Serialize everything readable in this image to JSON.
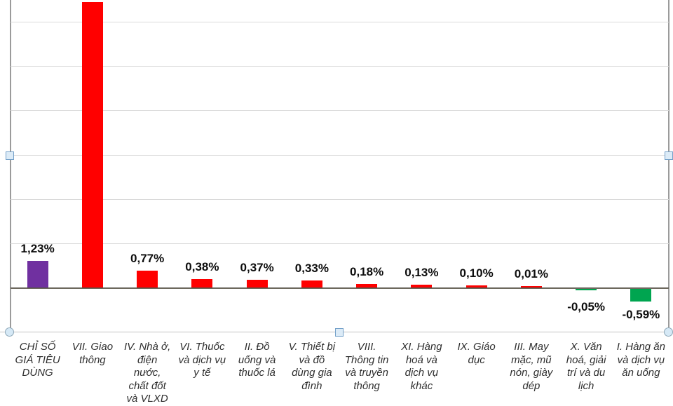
{
  "chart_data": {
    "type": "bar",
    "title": "",
    "legend": "none",
    "grid": "horizontal",
    "value_format": "percent, comma decimal separator",
    "gridlines_pct": [
      2,
      4,
      6,
      8,
      10,
      12
    ],
    "ylim_visible": [
      -2,
      13
    ],
    "note": "Tall bar VII extends to the cropped top edge of the image; its data label is not visible. Its value (12.88) is estimated from bar height.",
    "categories": [
      "CHỈ SỐ GIÁ TIÊU DÙNG",
      "VII. Giao thông",
      "IV. Nhà ở, điện nước, chất đốt và VLXD",
      "VI. Thuốc và dịch vụ y tế",
      "II. Đồ uống và thuốc lá",
      "V. Thiết bị và đồ dùng gia đình",
      "VIII. Thông tin và truyền thông",
      "XI. Hàng hoá và dịch vụ khác",
      "IX. Giáo dục",
      "III. May mặc, mũ nón, giày dép",
      "X. Văn hoá, giải trí và du lịch",
      "I. Hàng ăn và dịch vụ ăn uống"
    ],
    "category_label_lines": [
      [
        "CHỈ SỐ",
        "GIÁ TIÊU",
        "DÙNG"
      ],
      [
        "VII. Giao",
        "thông"
      ],
      [
        "IV. Nhà ở,",
        "điện",
        "nước,",
        "chất đốt",
        "và VLXD"
      ],
      [
        "VI. Thuốc",
        "và dịch vụ",
        "y tế"
      ],
      [
        "II. Đồ",
        "uống và",
        "thuốc lá"
      ],
      [
        "V. Thiết bị",
        "và đồ",
        "dùng gia",
        "đình"
      ],
      [
        "VIII.",
        "Thông tin",
        "và truyền",
        "thông"
      ],
      [
        "XI. Hàng",
        "hoá và",
        "dịch vụ",
        "khác"
      ],
      [
        "IX. Giáo",
        "dục"
      ],
      [
        "III. May",
        "mặc, mũ",
        "nón, giày",
        "dép"
      ],
      [
        "X. Văn",
        "hoá, giải",
        "trí và du",
        "lịch"
      ],
      [
        "I. Hàng ăn",
        "và dịch vụ",
        "ăn uống"
      ]
    ],
    "values": [
      1.23,
      12.88,
      0.77,
      0.38,
      0.37,
      0.33,
      0.18,
      0.13,
      0.1,
      0.01,
      -0.05,
      -0.59
    ],
    "data_labels": [
      "1,23%",
      "",
      "0,77%",
      "0,38%",
      "0,37%",
      "0,33%",
      "0,18%",
      "0,13%",
      "0,10%",
      "0,01%",
      "-0,05%",
      "-0,59%"
    ],
    "bar_colors": [
      "#7030A0",
      "#FF0000",
      "#FF0000",
      "#FF0000",
      "#FF0000",
      "#FF0000",
      "#FF0000",
      "#FF0000",
      "#FF0000",
      "#FF0000",
      "#00A550",
      "#00A550"
    ],
    "bar_slugs": [
      "cpi-overall",
      "vii-giao-thong",
      "iv-nha-o-dien-nuoc",
      "vi-thuoc-dich-vu-y-te",
      "ii-do-uong-thuoc-la",
      "v-thiet-bi-gia-dinh",
      "viii-thong-tin-truyen-thong",
      "xi-hang-hoa-khac",
      "ix-giao-duc",
      "iii-may-mac",
      "x-van-hoa-du-lich",
      "i-hang-an-dich-vu-an-uong"
    ]
  },
  "selection": {
    "selected_object": "plot-area",
    "handles": [
      "left-middle",
      "right-middle",
      "bottom-left",
      "bottom-center",
      "bottom-right"
    ]
  },
  "colors": {
    "positive_bar": "#FF0000",
    "negative_bar": "#00A550",
    "cpi_bar": "#7030A0",
    "axis_line": "#6f6a5d",
    "gridline": "#dadada",
    "handle_fill": "#dcebf7",
    "handle_border": "#73a0c9"
  }
}
